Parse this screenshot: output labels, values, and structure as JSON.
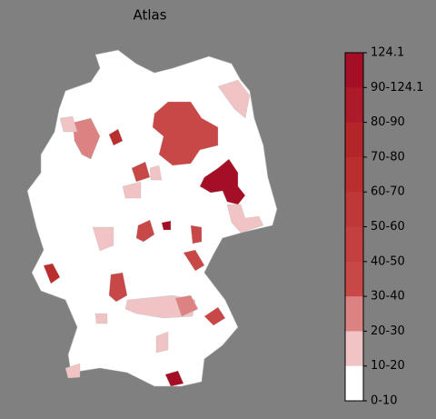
{
  "title": "Atlas",
  "colorbar": {
    "labels": [
      "124.1",
      "90-124.1",
      "80-90",
      "70-80",
      "60-70",
      "50-60",
      "40-50",
      "30-40",
      "20-30",
      "10-20",
      "0-10"
    ],
    "colors": [
      "#a50f25",
      "#ad1a2a",
      "#b42529",
      "#bb2e2e",
      "#c03737",
      "#c43f3f",
      "#c84747",
      "#dc8282",
      "#f0c4c4",
      "#ffffff"
    ]
  }
}
